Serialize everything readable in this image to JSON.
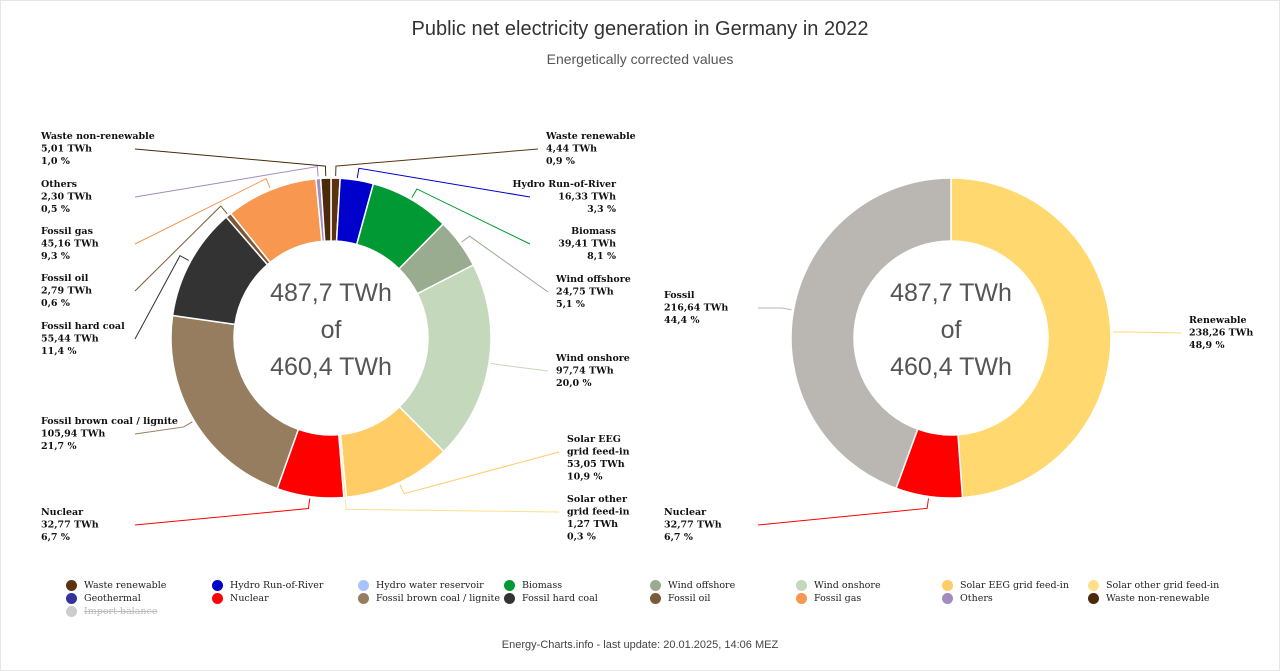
{
  "header": {
    "title": "Public net electricity generation in Germany in 2022",
    "subtitle": "Energetically corrected values"
  },
  "footer": {
    "text": "Energy-Charts.info - last update: 20.01.2025, 14:06 MEZ"
  },
  "chart_data": [
    {
      "type": "pie",
      "variant": "donut",
      "center_text": [
        "487,7 TWh",
        "of",
        "460,4 TWh"
      ],
      "slices": [
        {
          "name": "Waste renewable",
          "value": 4.44,
          "value_label": "4,44 TWh",
          "percent_label": "0,9 %",
          "color": "#5c3310"
        },
        {
          "name": "Hydro Run-of-River",
          "value": 16.33,
          "value_label": "16,33 TWh",
          "percent_label": "3,3 %",
          "color": "#0000cc"
        },
        {
          "name": "Biomass",
          "value": 39.41,
          "value_label": "39,41 TWh",
          "percent_label": "8,1 %",
          "color": "#009933"
        },
        {
          "name": "Wind offshore",
          "value": 24.75,
          "value_label": "24,75 TWh",
          "percent_label": "5,1 %",
          "color": "#9aac90"
        },
        {
          "name": "Wind onshore",
          "value": 97.74,
          "value_label": "97,74 TWh",
          "percent_label": "20,0 %",
          "color": "#c4d8bb"
        },
        {
          "name": "Solar EEG grid feed-in",
          "value": 53.05,
          "value_label": "53,05 TWh",
          "percent_label": "10,9 %",
          "color": "#ffcc66"
        },
        {
          "name": "Solar other grid feed-in",
          "value": 1.27,
          "value_label": "1,27 TWh",
          "percent_label": "0,3 %",
          "color": "#ffe08a"
        },
        {
          "name": "Nuclear",
          "value": 32.77,
          "value_label": "32,77 TWh",
          "percent_label": "6,7 %",
          "color": "#ff0000"
        },
        {
          "name": "Fossil brown coal / lignite",
          "value": 105.94,
          "value_label": "105,94 TWh",
          "percent_label": "21,7 %",
          "color": "#977d60"
        },
        {
          "name": "Fossil hard coal",
          "value": 55.44,
          "value_label": "55,44 TWh",
          "percent_label": "11,4 %",
          "color": "#333333"
        },
        {
          "name": "Fossil oil",
          "value": 2.79,
          "value_label": "2,79 TWh",
          "percent_label": "0,6 %",
          "color": "#7a5a3a"
        },
        {
          "name": "Fossil gas",
          "value": 45.16,
          "value_label": "45,16 TWh",
          "percent_label": "9,3 %",
          "color": "#f8974f"
        },
        {
          "name": "Others",
          "value": 2.3,
          "value_label": "2,30 TWh",
          "percent_label": "0,5 %",
          "color": "#a28bbf"
        },
        {
          "name": "Waste non-renewable",
          "value": 5.01,
          "value_label": "5,01 TWh",
          "percent_label": "1,0 %",
          "color": "#4a2a08"
        }
      ]
    },
    {
      "type": "pie",
      "variant": "donut",
      "center_text": [
        "487,7 TWh",
        "of",
        "460,4 TWh"
      ],
      "slices": [
        {
          "name": "Renewable",
          "value": 238.26,
          "value_label": "238,26 TWh",
          "percent_label": "48,9 %",
          "color": "#ffd970"
        },
        {
          "name": "Nuclear",
          "value": 32.77,
          "value_label": "32,77 TWh",
          "percent_label": "6,7 %",
          "color": "#ff0000"
        },
        {
          "name": "Fossil",
          "value": 216.64,
          "value_label": "216,64 TWh",
          "percent_label": "44,4 %",
          "color": "#bab6b2"
        }
      ]
    }
  ],
  "legend": [
    {
      "label": "Waste renewable",
      "color": "#5c3310",
      "hidden": false
    },
    {
      "label": "Hydro Run-of-River",
      "color": "#0000cc",
      "hidden": false
    },
    {
      "label": "Hydro water reservoir",
      "color": "#a8c4ff",
      "hidden": false
    },
    {
      "label": "Biomass",
      "color": "#009933",
      "hidden": false
    },
    {
      "label": "Wind offshore",
      "color": "#9aac90",
      "hidden": false
    },
    {
      "label": "Wind onshore",
      "color": "#c4d8bb",
      "hidden": false
    },
    {
      "label": "Solar EEG grid feed-in",
      "color": "#ffcc66",
      "hidden": false
    },
    {
      "label": "Solar other grid feed-in",
      "color": "#ffe08a",
      "hidden": false
    },
    {
      "label": "Geothermal",
      "color": "#333399",
      "hidden": false
    },
    {
      "label": "Nuclear",
      "color": "#ff0000",
      "hidden": false
    },
    {
      "label": "Fossil brown coal / lignite",
      "color": "#977d60",
      "hidden": false
    },
    {
      "label": "Fossil hard coal",
      "color": "#333333",
      "hidden": false
    },
    {
      "label": "Fossil oil",
      "color": "#7a5a3a",
      "hidden": false
    },
    {
      "label": "Fossil gas",
      "color": "#f8974f",
      "hidden": false
    },
    {
      "label": "Others",
      "color": "#a28bbf",
      "hidden": false
    },
    {
      "label": "Waste non-renewable",
      "color": "#4a2a08",
      "hidden": false
    },
    {
      "label": "Import balance",
      "color": "#cccccc",
      "hidden": true
    }
  ]
}
